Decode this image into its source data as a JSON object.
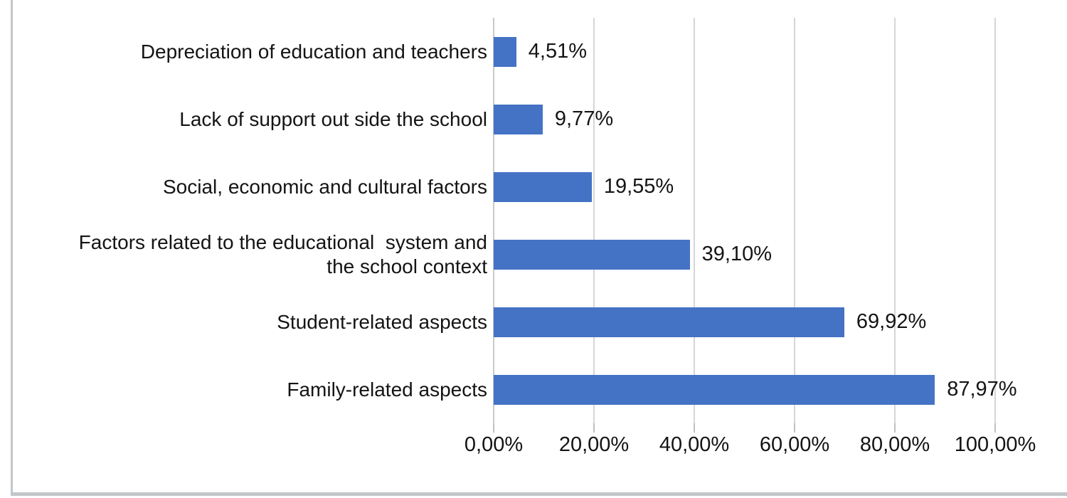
{
  "chart_data": {
    "type": "bar",
    "orientation": "horizontal",
    "title": "",
    "xlabel": "",
    "ylabel": "",
    "categories": [
      "Depreciation of education and teachers",
      "Lack of support out side the school",
      "Social, economic and cultural factors",
      "Factors related to the educational  system and\nthe school context",
      "Student-related aspects",
      "Family-related aspects"
    ],
    "values": [
      4.51,
      9.77,
      19.55,
      39.1,
      69.92,
      87.97
    ],
    "value_labels": [
      "4,51%",
      "9,77%",
      "19,55%",
      "39,10%",
      "69,92%",
      "87,97%"
    ],
    "xlim": [
      0,
      100
    ],
    "x_ticks": [
      0,
      20,
      40,
      60,
      80,
      100
    ],
    "x_tick_labels": [
      "0,00%",
      "20,00%",
      "40,00%",
      "60,00%",
      "80,00%",
      "100,00%"
    ],
    "grid": true,
    "legend": false,
    "colors": {
      "bar": "#4472c4",
      "gridline": "#d6d6d6",
      "axis_line": "#c9c9c9",
      "tick": "#c0c0c0",
      "text": "#141414",
      "frame_border": "#c2c6c9",
      "background": "#ffffff"
    }
  }
}
